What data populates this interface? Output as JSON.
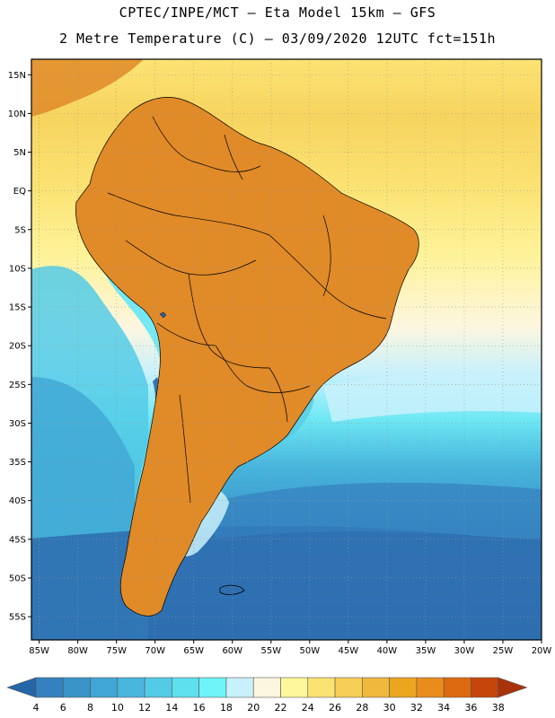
{
  "header": {
    "line1": "CPTEC/INPE/MCT –  Eta Model 15km – GFS",
    "line2": "2 Metre Temperature (C) – 03/09/2020 12UTC fct=151h"
  },
  "axes": {
    "lat_labels": [
      "15N",
      "10N",
      "5N",
      "EQ",
      "5S",
      "10S",
      "15S",
      "20S",
      "25S",
      "30S",
      "35S",
      "40S",
      "45S",
      "50S",
      "55S"
    ],
    "lat_values": [
      15,
      10,
      5,
      0,
      -5,
      -10,
      -15,
      -20,
      -25,
      -30,
      -35,
      -40,
      -45,
      -50,
      -55
    ],
    "lon_labels": [
      "85W",
      "80W",
      "75W",
      "70W",
      "65W",
      "60W",
      "55W",
      "50W",
      "45W",
      "40W",
      "35W",
      "30W",
      "25W",
      "20W"
    ],
    "lon_values": [
      -85,
      -80,
      -75,
      -70,
      -65,
      -60,
      -55,
      -50,
      -45,
      -40,
      -35,
      -30,
      -25,
      -20
    ],
    "lat_range": [
      -58,
      17
    ],
    "lon_range": [
      -86,
      -20
    ]
  },
  "colorbar": {
    "labels": [
      "4",
      "6",
      "8",
      "10",
      "12",
      "14",
      "16",
      "18",
      "20",
      "22",
      "24",
      "26",
      "28",
      "30",
      "32",
      "34",
      "36",
      "38"
    ],
    "colors": [
      "#2566a8",
      "#3580bf",
      "#3a93c9",
      "#40a6d5",
      "#48b6dd",
      "#54cbe6",
      "#5fe0ef",
      "#6ef4f7",
      "#c9f1fb",
      "#fdf6df",
      "#fef89a",
      "#fbe373",
      "#f6ce55",
      "#f0b93d",
      "#eca51e",
      "#e88d1c",
      "#dd6a10",
      "#c5450b",
      "#a8330a"
    ]
  },
  "legend": {
    "land": "#e08a28",
    "ocean_warm": "#fbe373",
    "ocean_cold": "#2f6fb0"
  }
}
